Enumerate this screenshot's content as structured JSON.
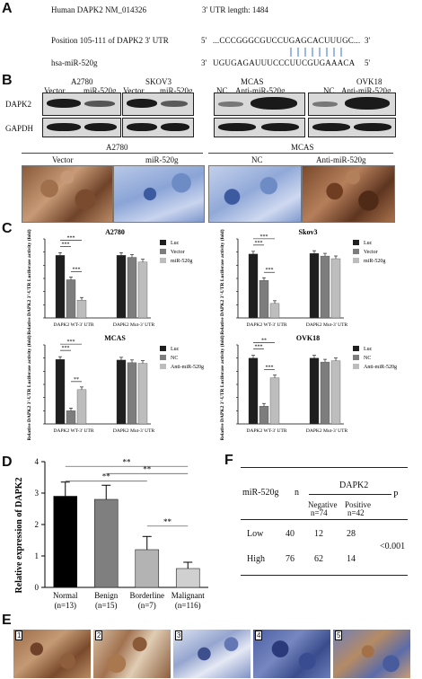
{
  "panelA": {
    "label": "A",
    "title": "Human DAPK2 NM_014326",
    "utr_length": "3' UTR length: 1484",
    "position_label": "Position 105-111 of DAPK2 3' UTR",
    "target_prefix": "5'",
    "target_seq": "...CCCGGGCGUCCUGAGCACUUUGC...",
    "target_suffix": "3'",
    "mir_label": "hsa-miR-520g",
    "mir_prefix": "3'",
    "mir_seq": "UGUGAGAUUUCCCUUCGUGAAACA",
    "mir_suffix": "5'"
  },
  "panelB": {
    "label": "B",
    "groups": [
      {
        "name": "A2780",
        "lanes": [
          "Vector",
          "miR-520g"
        ]
      },
      {
        "name": "SKOV3",
        "lanes": [
          "Vector",
          "miR-520g"
        ]
      },
      {
        "name": "MCAS",
        "lanes": [
          "NC",
          "Anti-miR-520g"
        ]
      },
      {
        "name": "OVK18",
        "lanes": [
          "NC",
          "Anti-miR-520g"
        ]
      }
    ],
    "row_labels": [
      "DAPK2",
      "GAPDH"
    ],
    "ihc_groups": [
      {
        "name": "A2780",
        "lanes": [
          "Vector",
          "miR-520g"
        ]
      },
      {
        "name": "MCAS",
        "lanes": [
          "NC",
          "Anti-miR-520g"
        ]
      }
    ]
  },
  "panelC": {
    "label": "C",
    "ylabel": "Relative DAPK2 3'-UTR Luciferase activity (fold)",
    "charts": [
      {
        "title": "A2780",
        "legend": [
          "Luc",
          "Vector",
          "miR-520g"
        ]
      },
      {
        "title": "Skov3",
        "legend": [
          "Luc",
          "Vector",
          "miR-520g"
        ]
      },
      {
        "title": "MCAS",
        "legend": [
          "Luc",
          "NC",
          "Anti-miR-520g"
        ]
      },
      {
        "title": "OVK18",
        "legend": [
          "Luc",
          "NC",
          "Anti-miR-520g"
        ]
      }
    ],
    "xcats": [
      "DAPK2 WT-3' UTR",
      "DAPK2 Mut-3' UTR"
    ]
  },
  "panelD": {
    "label": "D",
    "ylabel": "Relative expression of DAPK2",
    "groups": [
      {
        "name": "Normal",
        "n": "(n=13)"
      },
      {
        "name": "Benign",
        "n": "(n=15)"
      },
      {
        "name": "Borderline",
        "n": "(n=7)"
      },
      {
        "name": "Malignant",
        "n": "(n=116)"
      }
    ],
    "yticks": [
      "0",
      "1",
      "2",
      "3",
      "4"
    ],
    "sig": "**"
  },
  "panelE": {
    "label": "E",
    "images": [
      "1",
      "2",
      "3",
      "4",
      "5"
    ]
  },
  "panelF": {
    "label": "F",
    "row_header": "miR-520g",
    "n_header": "n",
    "dapk2_header": "DAPK2",
    "p_header": "P",
    "neg_header": "Negative",
    "neg_n": "n=74",
    "pos_header": "Positive",
    "pos_n": "n=42",
    "rows": [
      {
        "label": "Low",
        "n": "40",
        "neg": "12",
        "pos": "28"
      },
      {
        "label": "High",
        "n": "76",
        "neg": "62",
        "pos": "14"
      }
    ],
    "p_value": "<0.001"
  },
  "chart_data": [
    {
      "type": "bar",
      "title": "A2780",
      "categories": [
        "DAPK2 WT-3' UTR",
        "DAPK2 Mut-3' UTR"
      ],
      "ylim": [
        0,
        120
      ],
      "series": [
        {
          "name": "Luc",
          "values": [
            95,
            95
          ]
        },
        {
          "name": "Vector",
          "values": [
            58,
            92
          ]
        },
        {
          "name": "miR-520g",
          "values": [
            27,
            85
          ]
        }
      ],
      "significance": [
        "***",
        "***",
        "***"
      ]
    },
    {
      "type": "bar",
      "title": "Skov3",
      "categories": [
        "DAPK2 WT-3' UTR",
        "DAPK2 Mut-3' UTR"
      ],
      "ylim": [
        0,
        120
      ],
      "series": [
        {
          "name": "Luc",
          "values": [
            97,
            98
          ]
        },
        {
          "name": "Vector",
          "values": [
            57,
            94
          ]
        },
        {
          "name": "miR-520g",
          "values": [
            22,
            90
          ]
        }
      ],
      "significance": [
        "***",
        "***",
        "***"
      ]
    },
    {
      "type": "bar",
      "title": "MCAS",
      "categories": [
        "DAPK2 WT-3' UTR",
        "DAPK2 Mut-3' UTR"
      ],
      "ylim": [
        0,
        120
      ],
      "series": [
        {
          "name": "Luc",
          "values": [
            98,
            97
          ]
        },
        {
          "name": "NC",
          "values": [
            20,
            93
          ]
        },
        {
          "name": "Anti-miR-520g",
          "values": [
            52,
            92
          ]
        }
      ],
      "significance": [
        "***",
        "***",
        "**"
      ]
    },
    {
      "type": "bar",
      "title": "OVK18",
      "categories": [
        "DAPK2 WT-3' UTR",
        "DAPK2 Mut-3' UTR"
      ],
      "ylim": [
        0,
        120
      ],
      "series": [
        {
          "name": "Luc",
          "values": [
            100,
            100
          ]
        },
        {
          "name": "NC",
          "values": [
            27,
            94
          ]
        },
        {
          "name": "Anti-miR-520g",
          "values": [
            70,
            96
          ]
        }
      ],
      "significance": [
        "***",
        "**",
        "***"
      ]
    },
    {
      "type": "bar",
      "title": "",
      "categories": [
        "Normal",
        "Benign",
        "Borderline",
        "Malignant"
      ],
      "ylabel": "Relative expression of DAPK2",
      "ylim": [
        0,
        4
      ],
      "values": [
        2.9,
        2.8,
        1.2,
        0.6
      ],
      "errors": [
        0.45,
        0.45,
        0.42,
        0.2
      ],
      "significance": [
        "**",
        "**",
        "**",
        "**"
      ]
    }
  ],
  "colors": {
    "luc": "#1f1f1f",
    "ctrl": "#7d7d7d",
    "treat": "#bdbdbd",
    "normal": "#000000",
    "benign": "#7f7f7f",
    "borderline": "#b3b3b3",
    "malignant": "#d0d0d0",
    "pair_lines": "#3a6fd8",
    "ihc_brown": "#8a5a3a",
    "ihc_blue": "#5a7db8"
  }
}
